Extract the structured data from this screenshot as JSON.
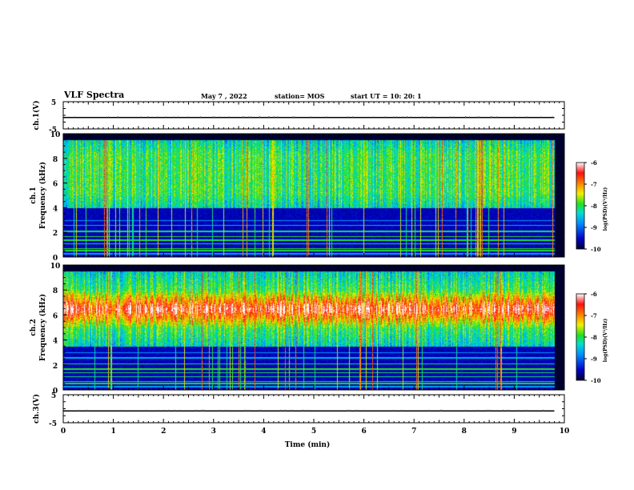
{
  "header": {
    "title": "VLF Spectra",
    "date": "May 7 , 2022",
    "station": "station= MOS",
    "start": "start  UT =   10: 20: 1"
  },
  "chart_data": [
    {
      "type": "line",
      "panel": "ch1-waveform",
      "ylabel": "ch.1(V)",
      "ylim": [
        -5,
        5
      ],
      "yticks": [
        "5",
        "-5"
      ],
      "series": [
        {
          "values": [
            -0.8,
            -0.8
          ]
        }
      ],
      "x": [
        0,
        9.8
      ],
      "xlim": [
        0,
        10
      ]
    },
    {
      "type": "heatmap",
      "panel": "ch1-spectrogram",
      "ylabel": "ch.1\nFrequency (kHz)",
      "ylim": [
        0,
        10
      ],
      "yticks": [
        "0",
        "2",
        "4",
        "6",
        "8",
        "10"
      ],
      "xlim": [
        0,
        10
      ],
      "data_end_min": 9.8,
      "signal_band_khz": [
        4,
        9.5
      ],
      "colorbar": {
        "label": "log(PSD)(V²/Hz)",
        "ticks": [
          "-6",
          "-7",
          "-8",
          "-9",
          "-10"
        ],
        "range": [
          -10,
          -6
        ]
      }
    },
    {
      "type": "heatmap",
      "panel": "ch2-spectrogram",
      "ylabel": "ch.2\nFrequency (kHz)",
      "ylim": [
        0,
        10
      ],
      "yticks": [
        "0",
        "2",
        "4",
        "6",
        "8",
        "10"
      ],
      "xlim": [
        0,
        10
      ],
      "data_end_min": 9.8,
      "signal_band_khz": [
        3.5,
        9.5
      ],
      "peak_band_khz": [
        5.5,
        7.5
      ],
      "colorbar": {
        "label": "log(PSD)(V²/Hz)",
        "ticks": [
          "-6",
          "-7",
          "-8",
          "-9",
          "-10"
        ],
        "range": [
          -10,
          -6
        ]
      }
    },
    {
      "type": "line",
      "panel": "ch3-waveform",
      "ylabel": "ch.3(V)",
      "ylim": [
        -5,
        5
      ],
      "yticks": [
        "5",
        "-5"
      ],
      "series": [
        {
          "values": [
            -0.8,
            -0.8
          ]
        }
      ],
      "x": [
        0,
        9.8
      ],
      "xlim": [
        0,
        10
      ],
      "xlabel": "Time (min)",
      "xticks": [
        "0",
        "1",
        "2",
        "3",
        "4",
        "5",
        "6",
        "7",
        "8",
        "9",
        "10"
      ]
    }
  ],
  "colors": {
    "axis": "#000000",
    "background": "#ffffff",
    "colormap": [
      "#000030",
      "#0000c8",
      "#0090ff",
      "#00e0d0",
      "#20e020",
      "#f0f000",
      "#ff8000",
      "#ff1010",
      "#ffffff"
    ]
  }
}
